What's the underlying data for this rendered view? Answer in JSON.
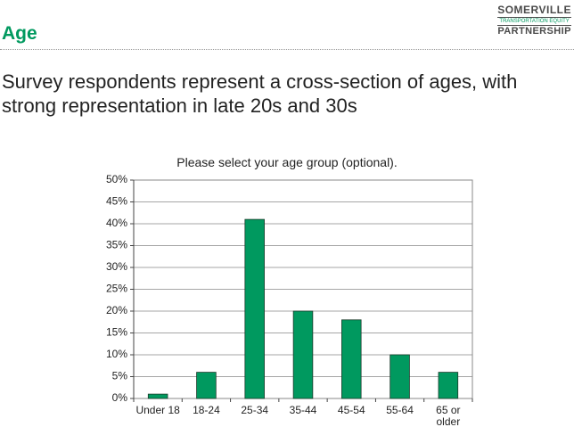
{
  "header": {
    "title": "Age",
    "logo": [
      "SOMERVILLE",
      "TRANSPORTATION EQUITY",
      "PARTNERSHIP"
    ]
  },
  "headline": "Survey respondents represent a cross-section of ages, with strong representation in late 20s and 30s",
  "chart_data": {
    "type": "bar",
    "title": "Please select your age group (optional).",
    "categories": [
      "Under 18",
      "18-24",
      "25-34",
      "35-44",
      "45-54",
      "55-64",
      "65 or older"
    ],
    "values": [
      1,
      6,
      41,
      20,
      18,
      10,
      6
    ],
    "color": "#00995f",
    "ylim": [
      0,
      50
    ],
    "yticks": [
      {
        "value": 0,
        "label": "0%"
      },
      {
        "value": 5,
        "label": "5%"
      },
      {
        "value": 10,
        "label": "10%"
      },
      {
        "value": 15,
        "label": "15%"
      },
      {
        "value": 20,
        "label": "20%"
      },
      {
        "value": 25,
        "label": "25%"
      },
      {
        "value": 30,
        "label": "30%"
      },
      {
        "value": 35,
        "label": "35%"
      },
      {
        "value": 40,
        "label": "40%"
      },
      {
        "value": 45,
        "label": "45%"
      },
      {
        "value": 50,
        "label": "50%"
      }
    ],
    "grid": true
  }
}
